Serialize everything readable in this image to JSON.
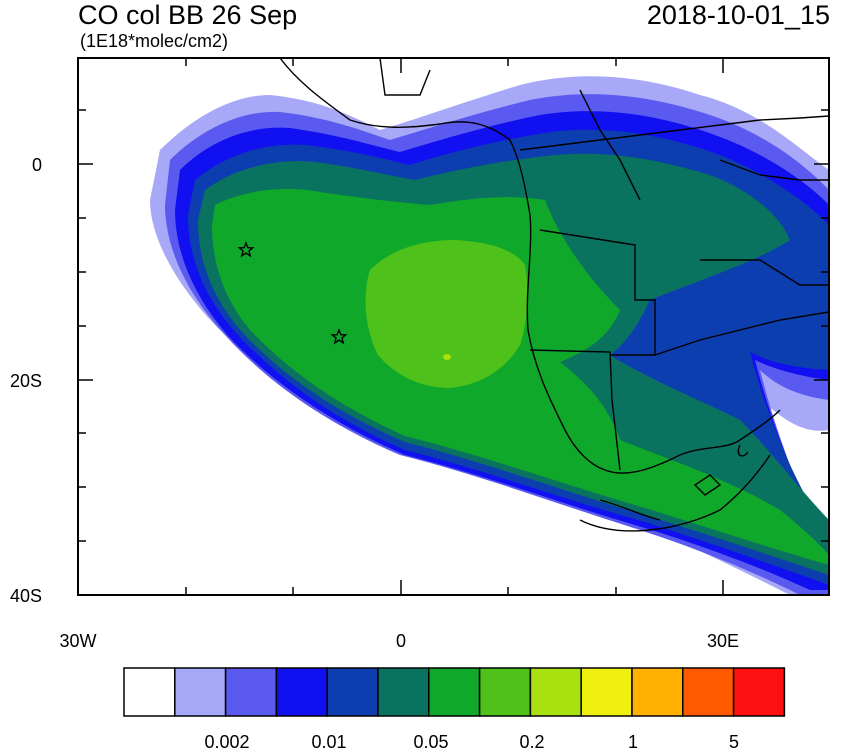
{
  "header": {
    "title": "CO col BB 26 Sep",
    "units": "(1E18*molec/cm2)",
    "datetime": "2018-10-01_15"
  },
  "map": {
    "y_ticks": [
      "0",
      "20S",
      "40S"
    ],
    "x_ticks": [
      "30W",
      "0",
      "30E"
    ],
    "markers": [
      {
        "name": "star-marker-west",
        "lon": -14.5,
        "lat": -8
      },
      {
        "name": "star-marker-east",
        "lon": -5.7,
        "lat": -16
      }
    ]
  },
  "colorbar": {
    "colors": [
      "#ffffff",
      "#a8a8f8",
      "#5a5af0",
      "#1010f0",
      "#0d3eb0",
      "#0a7360",
      "#10a82a",
      "#4ec11a",
      "#a8e010",
      "#f0f010",
      "#ffb000",
      "#ff5a00",
      "#ff1010"
    ],
    "labels": [
      "0.002",
      "0.01",
      "0.05",
      "0.2",
      "1",
      "5"
    ]
  },
  "legend_colors": {
    "c1": "#a8a8f8",
    "c2": "#5a5af0",
    "c3": "#1010f0",
    "c4": "#0d3eb0",
    "c5": "#0a7360",
    "c6": "#10a82a",
    "c7": "#4ec11a",
    "c8": "#a8e010"
  }
}
